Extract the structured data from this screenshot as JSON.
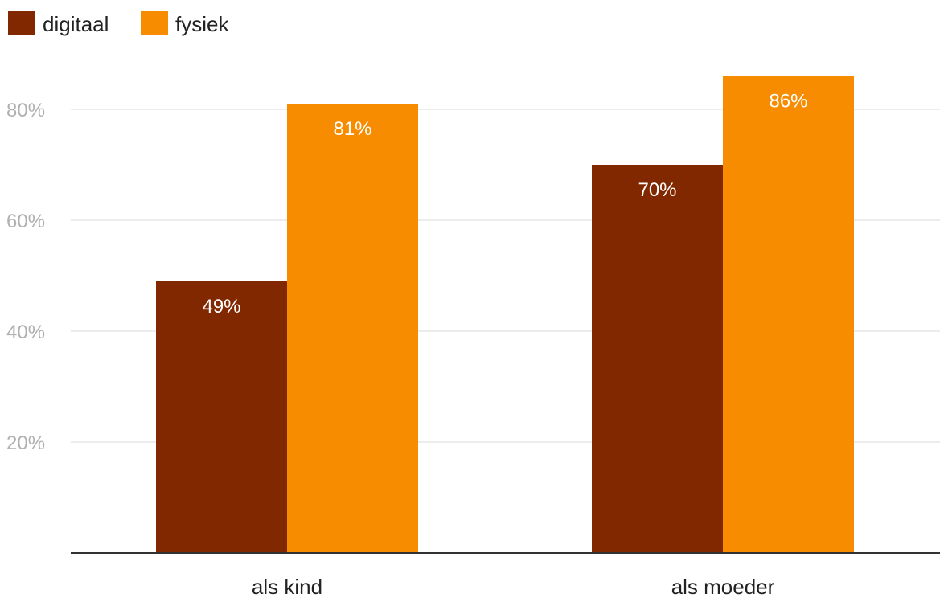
{
  "chart_data": {
    "type": "bar",
    "categories": [
      "als kind",
      "als moeder"
    ],
    "series": [
      {
        "name": "digitaal",
        "values": [
          49,
          70
        ],
        "labels": [
          "49%",
          "70%"
        ],
        "color": "#822800"
      },
      {
        "name": "fysiek",
        "values": [
          81,
          86
        ],
        "labels": [
          "81%",
          "86%"
        ],
        "color": "#f78c00"
      }
    ],
    "y_ticks": [
      {
        "value": 20,
        "label": "20%"
      },
      {
        "value": 40,
        "label": "40%"
      },
      {
        "value": 60,
        "label": "60%"
      },
      {
        "value": 80,
        "label": "80%"
      }
    ],
    "ylim": [
      0,
      90
    ],
    "grid": true,
    "legend_position": "top-left",
    "title": "",
    "xlabel": "",
    "ylabel": "",
    "gridline_color": "#e6e6e6",
    "baseline_color": "#333333"
  }
}
